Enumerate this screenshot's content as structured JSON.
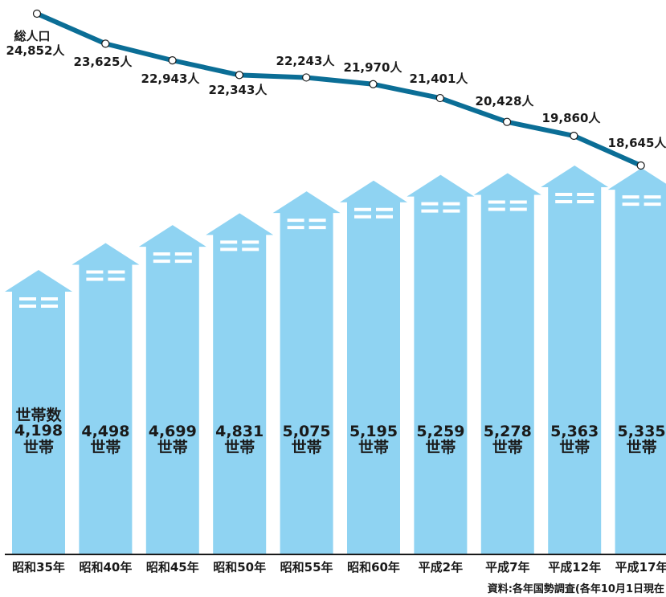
{
  "chart_data": {
    "type": "bar",
    "categories": [
      "昭和35年",
      "昭和40年",
      "昭和45年",
      "昭和50年",
      "昭和55年",
      "昭和60年",
      "平成2年",
      "平成7年",
      "平成12年",
      "平成17年"
    ],
    "series": [
      {
        "name": "世帯数",
        "type": "bar",
        "values": [
          4198,
          4498,
          4699,
          4831,
          5075,
          5195,
          5259,
          5278,
          5363,
          5335
        ],
        "unit": "世帯"
      },
      {
        "name": "総人口",
        "type": "line",
        "values": [
          24852,
          23625,
          22943,
          22343,
          22243,
          21970,
          21401,
          20428,
          19860,
          18645
        ],
        "unit": "人"
      }
    ],
    "bar_labels": [
      "4,198",
      "4,498",
      "4,699",
      "4,831",
      "5,075",
      "5,195",
      "5,259",
      "5,278",
      "5,363",
      "5,335"
    ],
    "line_labels": [
      "24,852人",
      "23,625人",
      "22,943人",
      "22,343人",
      "22,243人",
      "21,970人",
      "21,401人",
      "20,428人",
      "19,860人",
      "18,645人"
    ],
    "bar_unit_label": "世帯",
    "bar_series_label": "世帯数",
    "line_series_label": "総人口",
    "source": "資料:各年国勢調査(各年10月1日現在",
    "colors": {
      "bar": "#8fd3f2",
      "line": "#0b6e96",
      "window": "#ffffff"
    }
  }
}
